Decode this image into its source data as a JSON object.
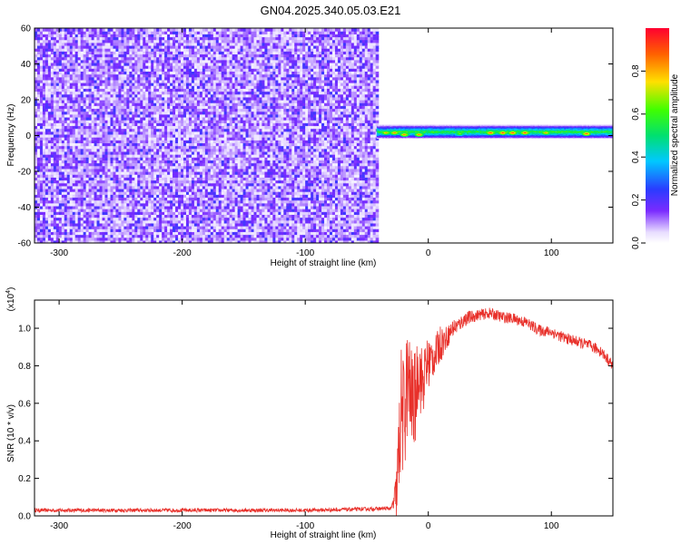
{
  "title": "GN04.2025.340.05.03.E21",
  "chart_data": [
    {
      "type": "heatmap",
      "xlabel": "Height of straight line (km)",
      "ylabel": "Frequency (Hz)",
      "xlim": [
        -320,
        150
      ],
      "ylim": [
        -60,
        60
      ],
      "xticks": [
        -300,
        -200,
        -100,
        0,
        100
      ],
      "yticks": [
        -60,
        -40,
        -20,
        0,
        20,
        40,
        60
      ],
      "noise_region_x": [
        -320,
        -42
      ],
      "signal_band": {
        "x_start": -42,
        "x_end": 150,
        "center_hz": 2,
        "half_width_hz": 4
      },
      "hot_spots": [
        {
          "x": -35,
          "y": 1.5,
          "value": 0.85
        },
        {
          "x": -28,
          "y": 1.5,
          "value": 0.9
        },
        {
          "x": -20,
          "y": 0.5,
          "value": 0.9
        },
        {
          "x": -8,
          "y": 0.5,
          "value": 0.9
        },
        {
          "x": 25,
          "y": 1,
          "value": 0.7
        },
        {
          "x": 50,
          "y": 1.5,
          "value": 0.95
        },
        {
          "x": 60,
          "y": 1.5,
          "value": 0.95
        },
        {
          "x": 68,
          "y": 1.5,
          "value": 0.95
        },
        {
          "x": 78,
          "y": 1.5,
          "value": 0.95
        },
        {
          "x": 95,
          "y": 1.5,
          "value": 0.85
        },
        {
          "x": 128,
          "y": 1,
          "value": 0.95
        }
      ],
      "colorbar": {
        "label": "Normalized spectral amplitude",
        "range": [
          0,
          1
        ],
        "ticks": [
          0.0,
          0.2,
          0.4,
          0.6,
          0.8
        ]
      }
    },
    {
      "type": "line",
      "xlabel": "Height of straight line (km)",
      "ylabel": "SNR (10 * v/v)",
      "y_multiplier_label": "(x10",
      "y_multiplier_exp": "4",
      "y_multiplier_close": ")",
      "xlim": [
        -320,
        150
      ],
      "ylim": [
        0,
        1.15
      ],
      "xticks": [
        -300,
        -200,
        -100,
        0,
        100
      ],
      "yticks": [
        0.0,
        0.2,
        0.4,
        0.6,
        0.8,
        1.0
      ],
      "tick_labels": [
        "0.0",
        "0.2",
        "0.4",
        "0.6",
        "0.8",
        "1.0"
      ],
      "series": [
        {
          "color": "#e8302a",
          "x": [
            -320,
            -300,
            -250,
            -200,
            -150,
            -100,
            -60,
            -30,
            -26,
            -24,
            -22,
            -20,
            -17,
            -15,
            -12,
            -10,
            -8,
            -5,
            -2,
            0,
            5,
            10,
            15,
            20,
            25,
            30,
            40,
            50,
            60,
            70,
            80,
            90,
            100,
            110,
            120,
            130,
            140,
            150
          ],
          "y": [
            0.03,
            0.03,
            0.03,
            0.03,
            0.03,
            0.03,
            0.035,
            0.04,
            0.1,
            0.3,
            0.6,
            0.5,
            0.72,
            0.65,
            0.6,
            0.65,
            0.8,
            0.7,
            0.78,
            0.82,
            0.85,
            0.92,
            0.95,
            1.0,
            1.02,
            1.05,
            1.07,
            1.08,
            1.06,
            1.05,
            1.03,
            0.99,
            0.98,
            0.95,
            0.93,
            0.91,
            0.88,
            0.8
          ],
          "noise_amplitude": [
            0.01,
            0.01,
            0.01,
            0.01,
            0.01,
            0.01,
            0.01,
            0.01,
            0.15,
            0.3,
            0.3,
            0.35,
            0.3,
            0.3,
            0.25,
            0.25,
            0.2,
            0.2,
            0.15,
            0.15,
            0.1,
            0.1,
            0.06,
            0.05,
            0.04,
            0.04,
            0.03,
            0.03,
            0.03,
            0.03,
            0.03,
            0.03,
            0.03,
            0.03,
            0.03,
            0.03,
            0.03,
            0.03
          ]
        }
      ]
    }
  ]
}
